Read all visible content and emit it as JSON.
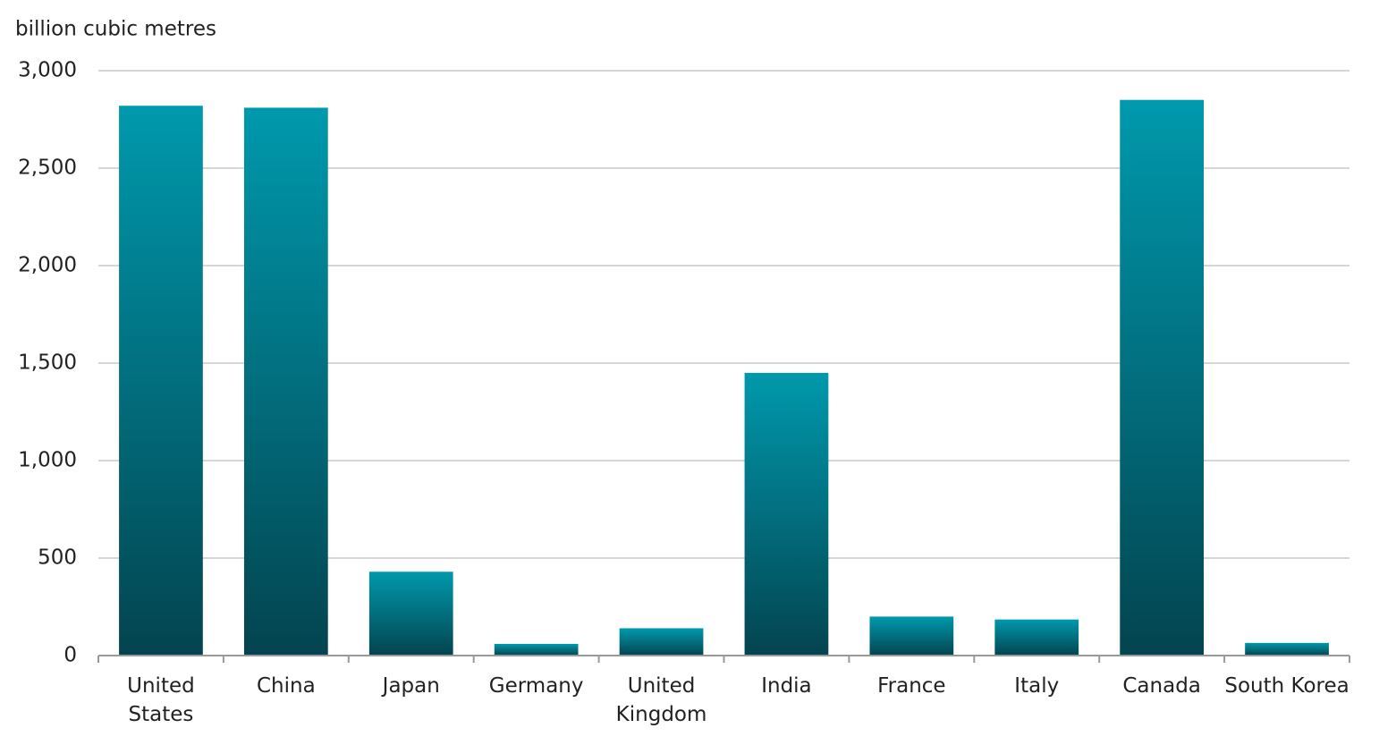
{
  "chart_data": {
    "type": "bar",
    "title": "billion cubic metres",
    "categories": [
      "United States",
      "China",
      "Japan",
      "Germany",
      "United Kingdom",
      "India",
      "France",
      "Italy",
      "Canada",
      "South Korea"
    ],
    "values": [
      2820,
      2810,
      430,
      60,
      140,
      1450,
      200,
      185,
      2850,
      65
    ],
    "color": "#0099ad",
    "color_bottom": "#03444f",
    "ylim": [
      0,
      3000
    ],
    "yticks": [
      0,
      500,
      {
        "value": 1000,
        "label": "1,000"
      },
      {
        "value": 1500,
        "label": "1,500"
      },
      {
        "value": 2000,
        "label": "2,000"
      },
      {
        "value": 2500,
        "label": "2,500"
      },
      {
        "value": 3000,
        "label": "3,000"
      }
    ],
    "grid": true
  }
}
